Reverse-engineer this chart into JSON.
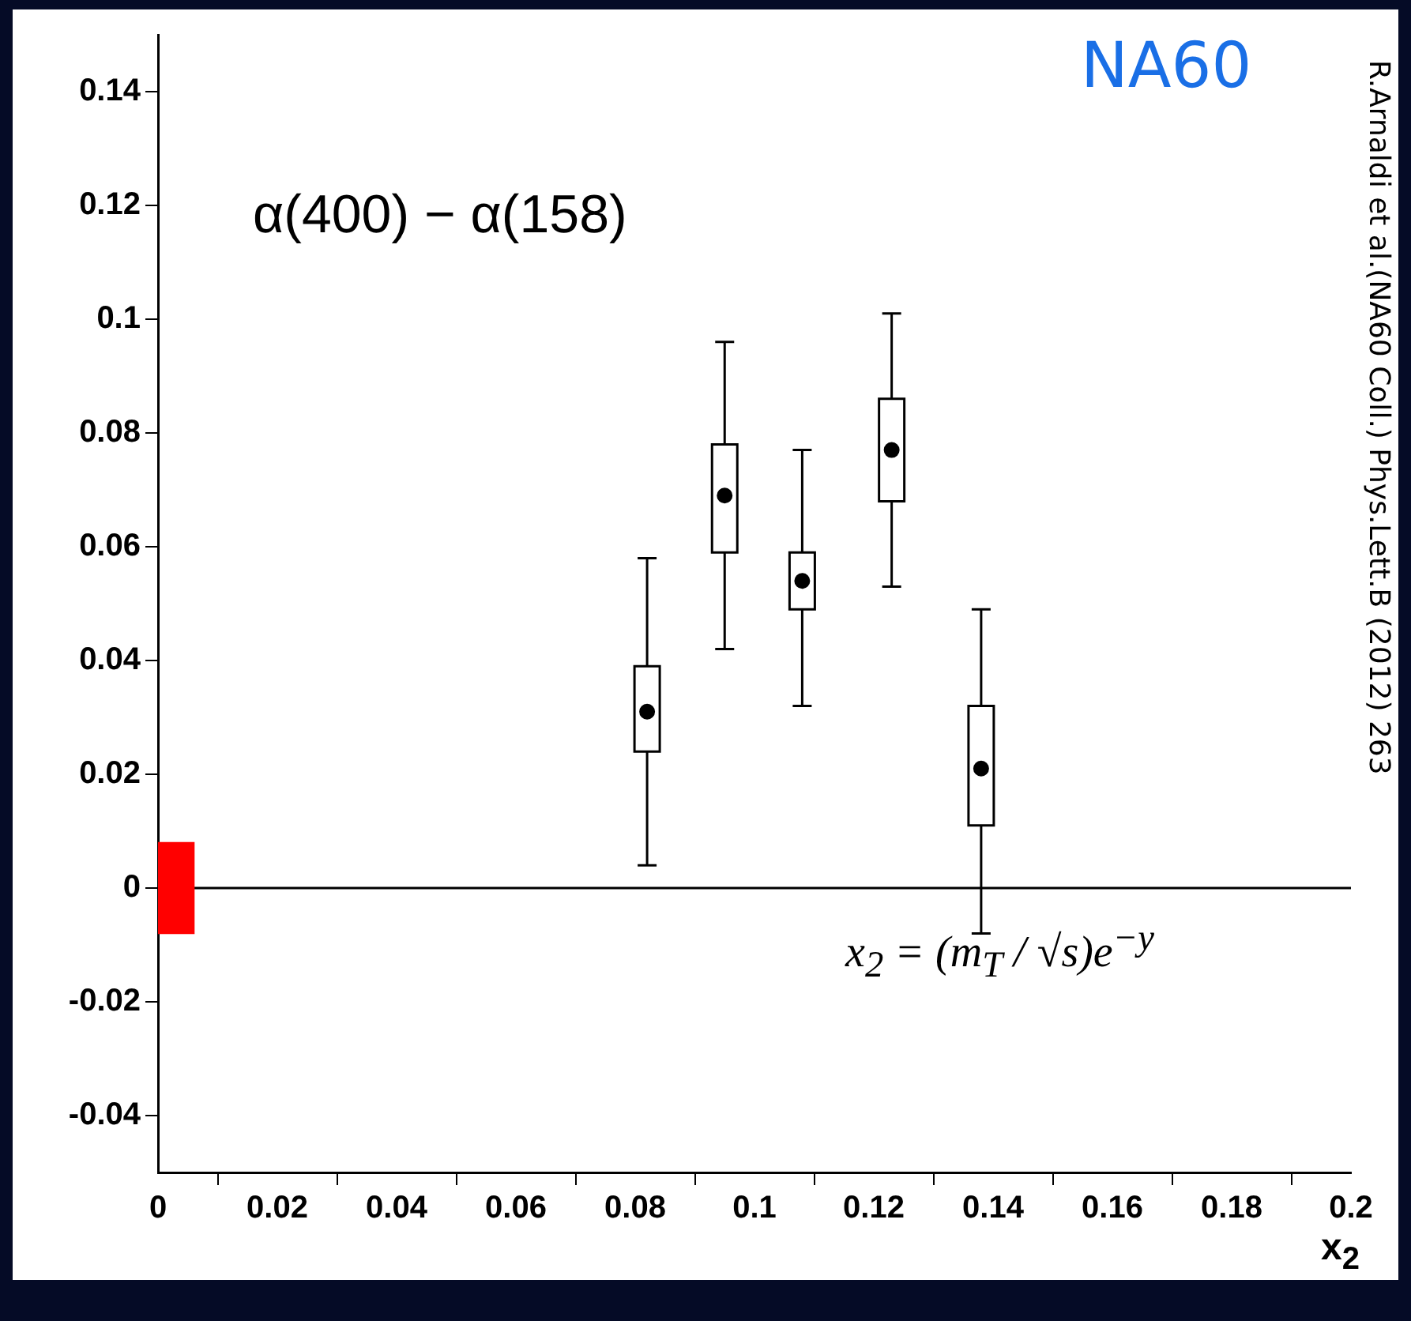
{
  "chart_data": {
    "type": "box",
    "xlabel": "x$_{2}$",
    "xlim": [
      0,
      0.2
    ],
    "ylim": [
      -0.05,
      0.15
    ],
    "xticks": [
      0,
      0.02,
      0.04,
      0.06,
      0.08,
      0.1,
      0.12,
      0.14,
      0.16,
      0.18,
      0.2
    ],
    "yticks": [
      -0.04,
      -0.02,
      0,
      0.02,
      0.04,
      0.06,
      0.08,
      0.1,
      0.12,
      0.14
    ],
    "series": [
      {
        "color": "#000000",
        "x": [
          0.082,
          0.095,
          0.108,
          0.123,
          0.138
        ],
        "boxes": [
          {
            "low": 0.004,
            "q1": 0.024,
            "median": 0.031,
            "q3": 0.039,
            "high": 0.058
          },
          {
            "low": 0.042,
            "q1": 0.059,
            "median": 0.069,
            "q3": 0.078,
            "high": 0.096
          },
          {
            "low": 0.032,
            "q1": 0.049,
            "median": 0.054,
            "q3": 0.059,
            "high": 0.077
          },
          {
            "low": 0.053,
            "q1": 0.068,
            "median": 0.077,
            "q3": 0.086,
            "high": 0.101
          },
          {
            "low": -0.008,
            "q1": 0.011,
            "median": 0.021,
            "q3": 0.032,
            "high": 0.049
          }
        ]
      },
      {
        "type": "bar",
        "color": "#ff0000",
        "x": [
          0.003
        ],
        "base": [
          -0.008
        ],
        "values": [
          0.016
        ]
      }
    ],
    "ref_lines": [
      {
        "axis": "y",
        "value": 0,
        "color": "#000000"
      }
    ],
    "annotations": [
      "α(400) − α(158)",
      "NA60",
      "x$_{2}$ = (m$_{T}$ / √s)e$^{−y}$",
      "R.Arnaldi et al.(NA60 Coll.) Phys.Lett.B (2012) 263"
    ],
    "grid": false,
    "legend": false
  }
}
